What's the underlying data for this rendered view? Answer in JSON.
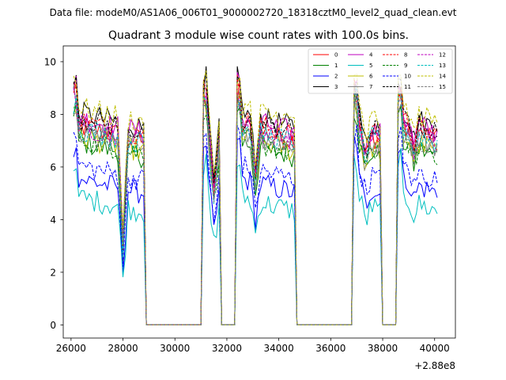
{
  "chart_data": {
    "type": "line",
    "suptitle": "Data file: modeM0/AS1A06_006T01_9000002720_18318cztM0_level2_quad_clean.evt",
    "title": "Quadrant 3 module wise count rates with 100.0s bins.",
    "xlabel": "",
    "ylabel": "",
    "x_offset_label": "+2.88e8",
    "xlim": [
      25700,
      40800
    ],
    "ylim": [
      -0.5,
      10.6
    ],
    "x_ticks": [
      26000,
      28000,
      30000,
      32000,
      34000,
      36000,
      38000,
      40000
    ],
    "x_tick_labels": [
      "26000",
      "28000",
      "30000",
      "32000",
      "34000",
      "36000",
      "38000",
      "40000"
    ],
    "y_ticks": [
      0,
      2,
      4,
      6,
      8,
      10
    ],
    "y_tick_labels": [
      "0",
      "2",
      "4",
      "6",
      "8",
      "10"
    ],
    "grid": false,
    "legend_position": "top-right",
    "segments": [
      {
        "x_start": 26100,
        "x_end": 28800,
        "dip_x": 28000,
        "dip_depth": 0.55
      },
      {
        "x_start": 31100,
        "x_end": 31750,
        "dip_x": 31500,
        "dip_depth": 0.3
      },
      {
        "x_start": 32400,
        "x_end": 34650,
        "dip_x": 33100,
        "dip_depth": 0.25
      },
      {
        "x_start": 36900,
        "x_end": 37900,
        "dip_x": 37350,
        "dip_depth": 0.15
      },
      {
        "x_start": 38600,
        "x_end": 40100,
        "dip_x": 39200,
        "dip_depth": 0.1
      }
    ],
    "gaps": [
      {
        "x_start": 28900,
        "x_end": 31000
      },
      {
        "x_start": 31800,
        "x_end": 32300
      },
      {
        "x_start": 34700,
        "x_end": 36800
      },
      {
        "x_start": 38000,
        "x_end": 38500
      }
    ],
    "series": [
      {
        "name": "0",
        "color": "#ff0000",
        "dash": "solid",
        "level": 7.6
      },
      {
        "name": "1",
        "color": "#008000",
        "dash": "solid",
        "level": 7.0
      },
      {
        "name": "2",
        "color": "#0000ff",
        "dash": "solid",
        "level": 5.6
      },
      {
        "name": "3",
        "color": "#000000",
        "dash": "solid",
        "level": 8.1
      },
      {
        "name": "4",
        "color": "#bf00bf",
        "dash": "solid",
        "level": 7.9
      },
      {
        "name": "5",
        "color": "#00bfbf",
        "dash": "solid",
        "level": 4.9
      },
      {
        "name": "6",
        "color": "#bfbf00",
        "dash": "solid",
        "level": 7.2
      },
      {
        "name": "7",
        "color": "#808080",
        "dash": "solid",
        "level": 7.4
      },
      {
        "name": "8",
        "color": "#ff0000",
        "dash": "dashed",
        "level": 7.8
      },
      {
        "name": "9",
        "color": "#008000",
        "dash": "dashed",
        "level": 7.1
      },
      {
        "name": "10",
        "color": "#0000ff",
        "dash": "dashed",
        "level": 6.1
      },
      {
        "name": "11",
        "color": "#000000",
        "dash": "dashed",
        "level": 7.9
      },
      {
        "name": "12",
        "color": "#bf00bf",
        "dash": "dashed",
        "level": 7.6
      },
      {
        "name": "13",
        "color": "#00bfbf",
        "dash": "dashed",
        "level": 7.5
      },
      {
        "name": "14",
        "color": "#bfbf00",
        "dash": "dashed",
        "level": 8.3
      },
      {
        "name": "15",
        "color": "#808080",
        "dash": "dashed",
        "level": 7.3
      }
    ]
  }
}
